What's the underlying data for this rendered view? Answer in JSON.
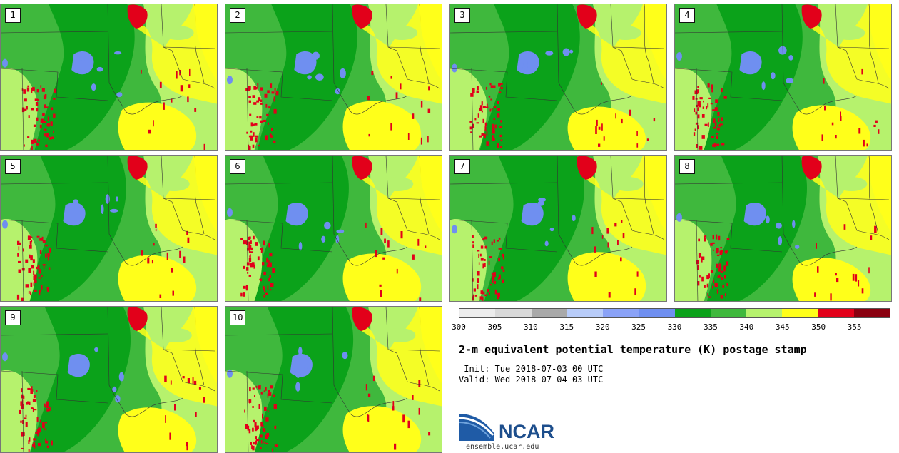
{
  "members": [
    {
      "label": "1"
    },
    {
      "label": "2"
    },
    {
      "label": "3"
    },
    {
      "label": "4"
    },
    {
      "label": "5"
    },
    {
      "label": "6"
    },
    {
      "label": "7"
    },
    {
      "label": "8"
    },
    {
      "label": "9"
    },
    {
      "label": "10"
    }
  ],
  "colorbar": {
    "colors": [
      "#ececec",
      "#d9d9d9",
      "#a9a9a9",
      "#b8ccf9",
      "#8aa2f7",
      "#6f8ff0",
      "#0ba21a",
      "#3fb83d",
      "#b6f26d",
      "#ffff1a",
      "#e2001a",
      "#8a0010"
    ],
    "ticks": [
      "300",
      "305",
      "310",
      "315",
      "320",
      "325",
      "330",
      "335",
      "340",
      "345",
      "350",
      "355"
    ]
  },
  "title": "2-m equivalent potential temperature (K) postage stamp",
  "init": " Init: Tue 2018-07-03 00 UTC",
  "valid": "Valid: Wed 2018-07-04 03 UTC",
  "logo": {
    "text": "NCAR",
    "url": "ensemble.ucar.edu"
  }
}
